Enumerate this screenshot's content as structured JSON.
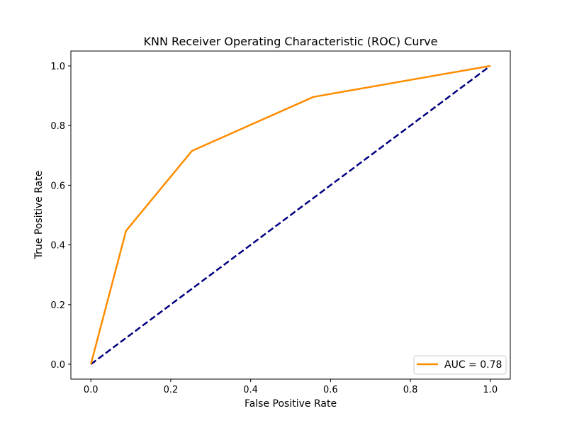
{
  "chart_data": {
    "type": "line",
    "title": "KNN Receiver Operating Characteristic (ROC) Curve",
    "xlabel": "False Positive Rate",
    "ylabel": "True Positive Rate",
    "xlim": [
      -0.05,
      1.05
    ],
    "ylim": [
      -0.05,
      1.05
    ],
    "x_ticks": [
      0.0,
      0.2,
      0.4,
      0.6,
      0.8,
      1.0
    ],
    "y_ticks": [
      0.0,
      0.2,
      0.4,
      0.6,
      0.8,
      1.0
    ],
    "x_tick_labels": [
      "0.0",
      "0.2",
      "0.4",
      "0.6",
      "0.8",
      "1.0"
    ],
    "y_tick_labels": [
      "0.0",
      "0.2",
      "0.4",
      "0.6",
      "0.8",
      "1.0"
    ],
    "grid": false,
    "legend_position": "lower right",
    "series": [
      {
        "name": "AUC = 0.78",
        "color": "#ff8c00",
        "line_style": "solid",
        "x": [
          0.0,
          0.088,
          0.253,
          0.557,
          1.0
        ],
        "y": [
          0.0,
          0.447,
          0.715,
          0.896,
          1.0
        ]
      },
      {
        "color": "#000080",
        "line_style": "dashed",
        "x": [
          0.0,
          1.0
        ],
        "y": [
          0.0,
          1.0
        ]
      }
    ]
  }
}
